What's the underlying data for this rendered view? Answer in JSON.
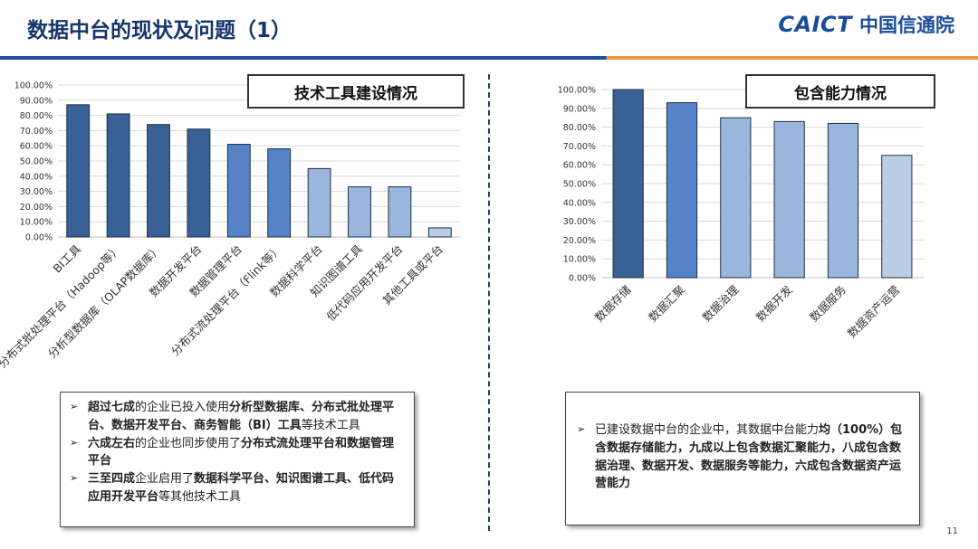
{
  "header": {
    "title": "数据中台的现状及问题（1）",
    "logo_en": "CAICT",
    "logo_cn": "中国信通院"
  },
  "colors": {
    "dark_blue": "#3a6196",
    "mid_blue": "#5583c5",
    "light_blue": "#9bb6dd",
    "pale_blue": "#bccde6",
    "header_blue": "#1f4e9b",
    "header_orange": "#e79a3c"
  },
  "chart_data": [
    {
      "type": "bar",
      "title": "技术工具建设情况",
      "categories": [
        "BI工具",
        "分布式批处理平台（Hadoop等）",
        "分析型数据库（OLAP数据库）",
        "数据开发平台",
        "数据管理平台",
        "分布式流处理平台（Flink等）",
        "数据科学平台",
        "知识图谱工具",
        "低代码应用开发平台",
        "其他工具或平台"
      ],
      "values": [
        87,
        81,
        74,
        71,
        61,
        58,
        45,
        33,
        33,
        6
      ],
      "bar_colors": [
        "#3a6196",
        "#3a6196",
        "#3a6196",
        "#3a6196",
        "#5583c5",
        "#5583c5",
        "#9bb6dd",
        "#9bb6dd",
        "#9bb6dd",
        "#bccde6"
      ],
      "ylim": [
        0,
        100
      ],
      "yticks": [
        "0.00%",
        "10.00%",
        "20.00%",
        "30.00%",
        "40.00%",
        "50.00%",
        "60.00%",
        "70.00%",
        "80.00%",
        "90.00%",
        "100.00%"
      ],
      "grid": true
    },
    {
      "type": "bar",
      "title": "包含能力情况",
      "categories": [
        "数据存储",
        "数据汇聚",
        "数据治理",
        "数据开发",
        "数据服务",
        "数据资产运营"
      ],
      "values": [
        100,
        93,
        85,
        83,
        82,
        65
      ],
      "bar_colors": [
        "#3a6196",
        "#5583c5",
        "#9bb6dd",
        "#9bb6dd",
        "#9bb6dd",
        "#bccde6"
      ],
      "ylim": [
        0,
        100
      ],
      "yticks": [
        "0.00%",
        "10.00%",
        "20.00%",
        "30.00%",
        "40.00%",
        "50.00%",
        "60.00%",
        "70.00%",
        "80.00%",
        "90.00%",
        "100.00%"
      ],
      "grid": true
    }
  ],
  "notes_left": [
    [
      {
        "t": "超过七成",
        "b": true
      },
      {
        "t": "的企业已投入使用",
        "b": false
      },
      {
        "t": "分析型数据库、分布式批处理平台、数据开发平台、商务智能（BI）工具",
        "b": true
      },
      {
        "t": "等技术工具",
        "b": false
      }
    ],
    [
      {
        "t": "六成左右",
        "b": true
      },
      {
        "t": "的企业也同步使用了",
        "b": false
      },
      {
        "t": "分布式流处理平台和数据管理平台",
        "b": true
      }
    ],
    [
      {
        "t": "三至四成",
        "b": true
      },
      {
        "t": "企业启用了",
        "b": false
      },
      {
        "t": "数据科学平台、知识图谱工具、低代码应用开发平台",
        "b": true
      },
      {
        "t": "等其他技术工具",
        "b": false
      }
    ]
  ],
  "notes_right": [
    [
      {
        "t": "已建设数据中台的企业中，其数据中台能力",
        "b": false
      },
      {
        "t": "均（100%）包含数据存储能力，九成以上包含数据汇聚能力，八成包含数据治理、数据开发、数据服务等能力，六成包含数据资产运营能力",
        "b": true
      }
    ]
  ],
  "page_number": "11"
}
